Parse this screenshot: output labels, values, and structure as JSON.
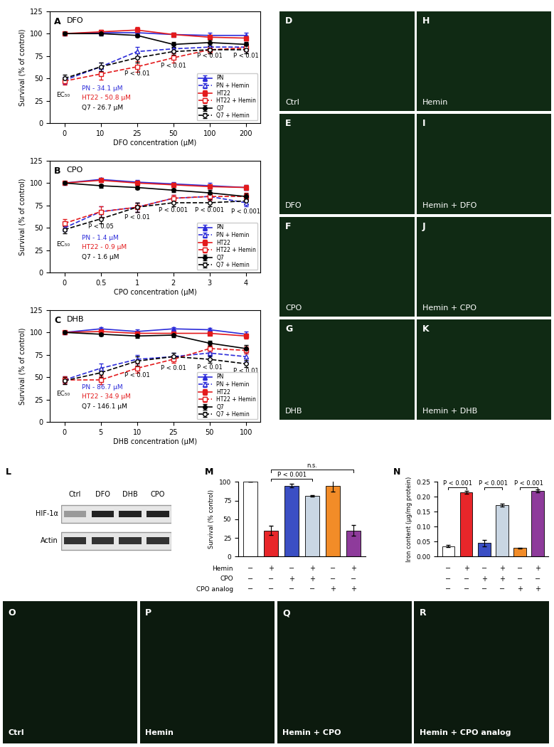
{
  "chart_data": [
    {
      "type": "line",
      "panel": "A",
      "title": "DFO",
      "x_label": "DFO concentration (μM)",
      "y_label": "Survival (% of control)",
      "categories": [
        "0",
        "10",
        "25",
        "50",
        "100",
        "200"
      ],
      "ylim": [
        0,
        125
      ],
      "yticks": [
        0,
        25,
        50,
        75,
        100,
        125
      ],
      "legend": "lower right",
      "series": [
        {
          "name": "PN",
          "color": "#2b2bd9",
          "marker": "triangle",
          "line_style": "solid",
          "values": [
            100,
            101,
            101,
            99,
            98,
            98
          ],
          "errors": [
            1,
            2,
            2,
            2,
            3,
            3
          ]
        },
        {
          "name": "PN + Hemin",
          "color": "#2b2bd9",
          "marker": "open_triangle",
          "line_style": "dashed",
          "values": [
            48,
            63,
            80,
            83,
            85,
            85
          ],
          "errors": [
            4,
            5,
            5,
            4,
            4,
            5
          ]
        },
        {
          "name": "HT22",
          "color": "#e31a1c",
          "marker": "square",
          "line_style": "solid",
          "values": [
            100,
            102,
            104,
            99,
            96,
            95
          ],
          "errors": [
            1,
            2,
            3,
            2,
            3,
            3
          ]
        },
        {
          "name": "HT22 + Hemin",
          "color": "#e31a1c",
          "marker": "open_square",
          "line_style": "dashed",
          "values": [
            47,
            55,
            63,
            73,
            82,
            84
          ],
          "errors": [
            4,
            6,
            6,
            5,
            4,
            4
          ]
        },
        {
          "name": "Q7",
          "color": "#000000",
          "marker": "circle",
          "line_style": "solid",
          "values": [
            100,
            100,
            98,
            88,
            90,
            88
          ],
          "errors": [
            1,
            2,
            2,
            3,
            3,
            3
          ]
        },
        {
          "name": "Q7 + Hemin",
          "color": "#000000",
          "marker": "open_circle",
          "line_style": "dashed",
          "values": [
            50,
            63,
            73,
            80,
            82,
            82
          ],
          "errors": [
            4,
            5,
            5,
            4,
            4,
            4
          ]
        }
      ],
      "ec50": {
        "label": "EC₅₀",
        "entries": [
          "PN - 34.1 μM",
          "HT22 - 50.8 μM",
          "Q7 - 26.7 μM"
        ]
      },
      "annotations": [
        {
          "x": "25",
          "y": 55,
          "text": "P < 0.01"
        },
        {
          "x": "50",
          "y": 64,
          "text": "P < 0.01"
        },
        {
          "x": "100",
          "y": 75,
          "text": "P < 0.01"
        },
        {
          "x": "200",
          "y": 75,
          "text": "P < 0.01"
        }
      ]
    },
    {
      "type": "line",
      "panel": "B",
      "title": "CPO",
      "x_label": "CPO concentration (μM)",
      "y_label": "Survival (% of control)",
      "categories": [
        "0",
        "0.5",
        "1",
        "2",
        "3",
        "4"
      ],
      "ylim": [
        0,
        125
      ],
      "yticks": [
        0,
        25,
        50,
        75,
        100,
        125
      ],
      "legend": "lower right",
      "series": [
        {
          "name": "PN",
          "color": "#2b2bd9",
          "marker": "triangle",
          "line_style": "solid",
          "values": [
            100,
            104,
            101,
            99,
            97,
            95
          ],
          "errors": [
            1,
            2,
            2,
            2,
            3,
            3
          ]
        },
        {
          "name": "PN + Hemin",
          "color": "#2b2bd9",
          "marker": "open_triangle",
          "line_style": "dashed",
          "values": [
            50,
            68,
            73,
            83,
            85,
            78
          ],
          "errors": [
            4,
            6,
            5,
            4,
            4,
            4
          ]
        },
        {
          "name": "HT22",
          "color": "#e31a1c",
          "marker": "square",
          "line_style": "solid",
          "values": [
            100,
            103,
            100,
            98,
            96,
            95
          ],
          "errors": [
            1,
            2,
            2,
            2,
            2,
            3
          ]
        },
        {
          "name": "HT22 + Hemin",
          "color": "#e31a1c",
          "marker": "open_square",
          "line_style": "dashed",
          "values": [
            55,
            68,
            73,
            83,
            85,
            85
          ],
          "errors": [
            5,
            6,
            5,
            4,
            4,
            4
          ]
        },
        {
          "name": "Q7",
          "color": "#000000",
          "marker": "circle",
          "line_style": "solid",
          "values": [
            100,
            97,
            95,
            92,
            89,
            85
          ],
          "errors": [
            1,
            2,
            2,
            2,
            3,
            3
          ]
        },
        {
          "name": "Q7 + Hemin",
          "color": "#000000",
          "marker": "open_circle",
          "line_style": "dashed",
          "values": [
            48,
            60,
            73,
            78,
            78,
            80
          ],
          "errors": [
            4,
            5,
            5,
            4,
            4,
            4
          ]
        }
      ],
      "ec50": {
        "label": "EC₅₀",
        "entries": [
          "PN - 1.4 μM",
          "HT22 - 0.9 μM",
          "Q7 - 1.6 μM"
        ]
      },
      "annotations": [
        {
          "x": "0.5",
          "y": 51,
          "text": "P < 0.05"
        },
        {
          "x": "1",
          "y": 62,
          "text": "P < 0.01"
        },
        {
          "x": "2",
          "y": 70,
          "text": "P < 0.001"
        },
        {
          "x": "3",
          "y": 70,
          "text": "P < 0.001"
        },
        {
          "x": "4",
          "y": 68,
          "text": "P < 0.001"
        }
      ]
    },
    {
      "type": "line",
      "panel": "C",
      "title": "DHB",
      "x_label": "DHB concentration (μM)",
      "y_label": "Survival (% of control)",
      "categories": [
        "0",
        "5",
        "10",
        "25",
        "50",
        "100"
      ],
      "ylim": [
        0,
        125
      ],
      "yticks": [
        0,
        25,
        50,
        75,
        100,
        125
      ],
      "legend": "lower right",
      "series": [
        {
          "name": "PN",
          "color": "#2b2bd9",
          "marker": "triangle",
          "line_style": "solid",
          "values": [
            100,
            104,
            101,
            104,
            103,
            98
          ],
          "errors": [
            1,
            2,
            2,
            2,
            2,
            3
          ]
        },
        {
          "name": "PN + Hemin",
          "color": "#2b2bd9",
          "marker": "open_triangle",
          "line_style": "dashed",
          "values": [
            47,
            60,
            70,
            73,
            77,
            73
          ],
          "errors": [
            4,
            5,
            5,
            4,
            4,
            5
          ]
        },
        {
          "name": "HT22",
          "color": "#e31a1c",
          "marker": "square",
          "line_style": "solid",
          "values": [
            100,
            101,
            99,
            99,
            99,
            96
          ],
          "errors": [
            1,
            2,
            2,
            2,
            2,
            3
          ]
        },
        {
          "name": "HT22 + Hemin",
          "color": "#e31a1c",
          "marker": "open_square",
          "line_style": "dashed",
          "values": [
            47,
            47,
            60,
            70,
            82,
            80
          ],
          "errors": [
            4,
            5,
            5,
            4,
            4,
            4
          ]
        },
        {
          "name": "Q7",
          "color": "#000000",
          "marker": "circle",
          "line_style": "solid",
          "values": [
            100,
            98,
            96,
            97,
            88,
            82
          ],
          "errors": [
            1,
            2,
            2,
            2,
            3,
            4
          ]
        },
        {
          "name": "Q7 + Hemin",
          "color": "#000000",
          "marker": "open_circle",
          "line_style": "dashed",
          "values": [
            46,
            55,
            68,
            73,
            70,
            65
          ],
          "errors": [
            4,
            5,
            5,
            4,
            4,
            4
          ]
        }
      ],
      "ec50": {
        "label": "EC₅₀",
        "entries": [
          "PN - 86.7 μM",
          "HT22 - 34.9 μM",
          "Q7 - 146.1 μM"
        ]
      },
      "annotations": [
        {
          "x": "10",
          "y": 52,
          "text": "P < 0.01"
        },
        {
          "x": "25",
          "y": 60,
          "text": "P < 0.01"
        },
        {
          "x": "50",
          "y": 61,
          "text": "P < 0.01"
        },
        {
          "x": "100",
          "y": 57,
          "text": "P < 0.01"
        }
      ]
    },
    {
      "type": "bar",
      "panel": "M",
      "y_label": "Survival (% control)",
      "values": [
        100,
        35,
        95,
        81,
        95,
        35
      ],
      "errors": [
        0,
        6,
        2,
        1,
        8,
        7
      ],
      "colors": [
        "#ffffff",
        "#e8262a",
        "#3b4fc4",
        "#c9d6e3",
        "#f28c28",
        "#8e3b9b"
      ],
      "ylim": [
        0,
        100
      ],
      "yticks": [
        0,
        25,
        50,
        75,
        100
      ],
      "rows": [
        {
          "name": "Hemin",
          "signs": [
            "−",
            "+",
            "−",
            "+",
            "−",
            "+"
          ]
        },
        {
          "name": "CPO",
          "signs": [
            "−",
            "−",
            "+",
            "+",
            "−",
            "−"
          ]
        },
        {
          "name": "CPO analog",
          "signs": [
            "−",
            "−",
            "−",
            "−",
            "+",
            "+"
          ]
        }
      ],
      "brackets": [
        {
          "from": 1,
          "to": 3,
          "y": 104,
          "text": "P < 0.001"
        },
        {
          "from": 1,
          "to": 5,
          "y": 116,
          "text": "n.s."
        }
      ]
    },
    {
      "type": "bar",
      "panel": "N",
      "y_label": "Iron content (μg/mg protein)",
      "values": [
        0.035,
        0.215,
        0.045,
        0.172,
        0.028,
        0.22
      ],
      "errors": [
        0.003,
        0.005,
        0.01,
        0.005,
        0.002,
        0.005
      ],
      "colors": [
        "#ffffff",
        "#e8262a",
        "#3b4fc4",
        "#c9d6e3",
        "#f28c28",
        "#8e3b9b"
      ],
      "ylim": [
        0,
        0.25
      ],
      "yticks": [
        {
          "value": 0,
          "label": "0.00"
        },
        {
          "value": 0.05,
          "label": "0.05"
        },
        {
          "value": 0.1,
          "label": "0.10"
        },
        {
          "value": 0.15,
          "label": "0.15"
        },
        {
          "value": 0.2,
          "label": "0.20"
        },
        {
          "value": 0.25,
          "label": "0.25"
        }
      ],
      "rows": [
        {
          "signs": [
            "−",
            "+",
            "−",
            "+",
            "−",
            "+"
          ]
        },
        {
          "signs": [
            "−",
            "−",
            "+",
            "+",
            "−",
            "−"
          ]
        },
        {
          "signs": [
            "−",
            "−",
            "−",
            "−",
            "+",
            "+"
          ]
        }
      ],
      "brackets": [
        {
          "from": 0,
          "to": 1,
          "y": 0.232,
          "text": "P < 0.001"
        },
        {
          "from": 2,
          "to": 3,
          "y": 0.232,
          "text": "P < 0.001"
        },
        {
          "from": 4,
          "to": 5,
          "y": 0.232,
          "text": "P < 0.001"
        }
      ]
    }
  ],
  "western_blot": {
    "panel": "L",
    "lanes": [
      "Ctrl",
      "DFO",
      "DHB",
      "CPO"
    ],
    "rows": [
      "HIF-1α",
      "Actin"
    ]
  },
  "micrographs_top": [
    {
      "panel": "D",
      "label": "Ctrl"
    },
    {
      "panel": "E",
      "label": "DFO"
    },
    {
      "panel": "F",
      "label": "CPO"
    },
    {
      "panel": "G",
      "label": "DHB"
    },
    {
      "panel": "H",
      "label": "Hemin"
    },
    {
      "panel": "I",
      "label": "Hemin + DFO"
    },
    {
      "panel": "J",
      "label": "Hemin + CPO"
    },
    {
      "panel": "K",
      "label": "Hemin + DHB"
    }
  ],
  "micrographs_bottom": [
    {
      "panel": "O",
      "label": "Ctrl"
    },
    {
      "panel": "P",
      "label": "Hemin"
    },
    {
      "panel": "Q",
      "label": "Hemin + CPO"
    },
    {
      "panel": "R",
      "label": "Hemin + CPO analog"
    }
  ]
}
